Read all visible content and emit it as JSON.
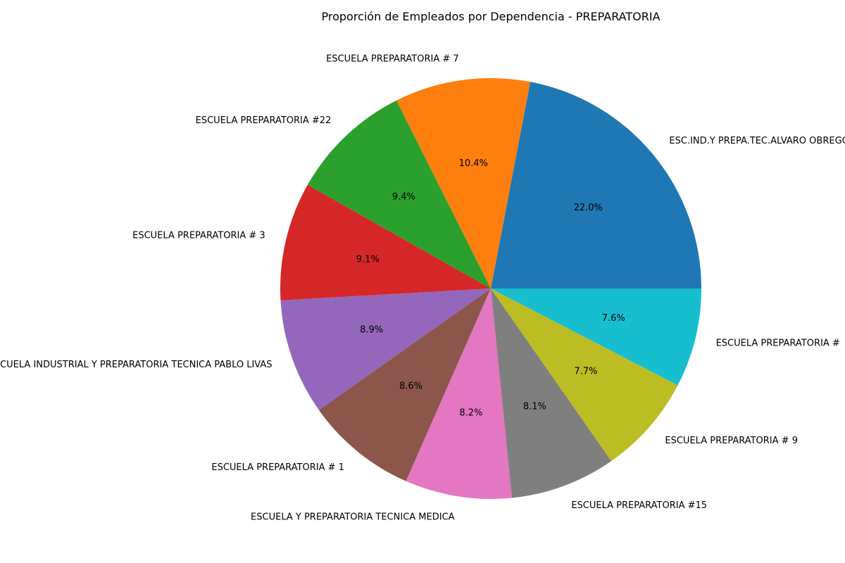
{
  "chart_data": {
    "type": "pie",
    "title": "Proporción de Empleados por Dependencia - PREPARATORIA",
    "slices": [
      {
        "label": "ESC.IND.Y PREPA.TEC.ALVARO OBREGON",
        "value": 22.0,
        "pct_label": "22.0%",
        "color": "#1f77b4"
      },
      {
        "label": "ESCUELA PREPARATORIA # 7",
        "value": 10.4,
        "pct_label": "10.4%",
        "color": "#ff7f0e"
      },
      {
        "label": "ESCUELA PREPARATORIA #22",
        "value": 9.4,
        "pct_label": "9.4%",
        "color": "#2ca02c"
      },
      {
        "label": "ESCUELA PREPARATORIA # 3",
        "value": 9.1,
        "pct_label": "9.1%",
        "color": "#d62728"
      },
      {
        "label": "ESCUELA INDUSTRIAL Y PREPARATORIA TECNICA PABLO LIVAS",
        "value": 8.9,
        "pct_label": "8.9%",
        "color": "#9467bd"
      },
      {
        "label": "ESCUELA PREPARATORIA # 1",
        "value": 8.6,
        "pct_label": "8.6%",
        "color": "#8c564b"
      },
      {
        "label": "ESCUELA Y PREPARATORIA TECNICA MEDICA",
        "value": 8.2,
        "pct_label": "8.2%",
        "color": "#e377c2"
      },
      {
        "label": "ESCUELA PREPARATORIA #15",
        "value": 8.1,
        "pct_label": "8.1%",
        "color": "#7f7f7f"
      },
      {
        "label": "ESCUELA PREPARATORIA # 9",
        "value": 7.7,
        "pct_label": "7.7%",
        "color": "#bcbd22"
      },
      {
        "label": "ESCUELA PREPARATORIA #",
        "value": 7.6,
        "pct_label": "7.6%",
        "color": "#17becf"
      }
    ],
    "start_angle_deg": 0,
    "direction": "counterclockwise",
    "legend": "none"
  }
}
